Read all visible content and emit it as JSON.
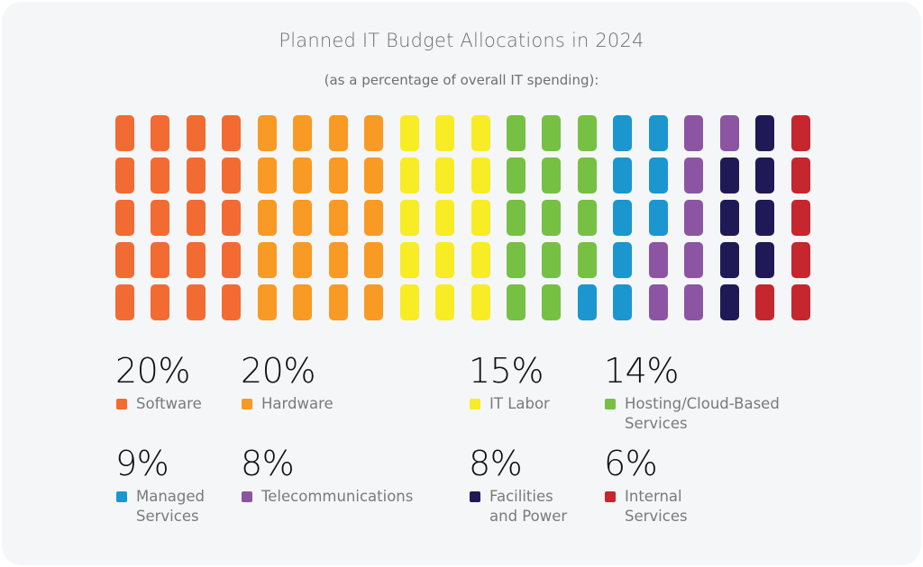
{
  "chart_data": {
    "type": "waffle",
    "title": "Planned IT Budget Allocations in 2024",
    "subtitle": "(as a percentage of overall IT spending):",
    "grid": {
      "rows": 5,
      "columns": 20,
      "fill_order": "column-major, top-to-bottom"
    },
    "categories": [
      {
        "label": "Software",
        "value": 20,
        "value_label": "20%",
        "color": "#f26b33"
      },
      {
        "label": "Hardware",
        "value": 20,
        "value_label": "20%",
        "color": "#f89a23"
      },
      {
        "label": "IT Labor",
        "value": 15,
        "value_label": "15%",
        "color": "#f8ec24"
      },
      {
        "label": "Hosting/Cloud-Based\nServices",
        "value": 14,
        "value_label": "14%",
        "color": "#76c043"
      },
      {
        "label": "Managed\nServices",
        "value": 9,
        "value_label": "9%",
        "color": "#1b96cf"
      },
      {
        "label": "Telecommunications",
        "value": 8,
        "value_label": "8%",
        "color": "#8c55a3"
      },
      {
        "label": "Facilities\nand Power",
        "value": 8,
        "value_label": "8%",
        "color": "#1f1a56"
      },
      {
        "label": "Internal\nServices",
        "value": 6,
        "value_label": "6%",
        "color": "#c6262d"
      }
    ]
  }
}
